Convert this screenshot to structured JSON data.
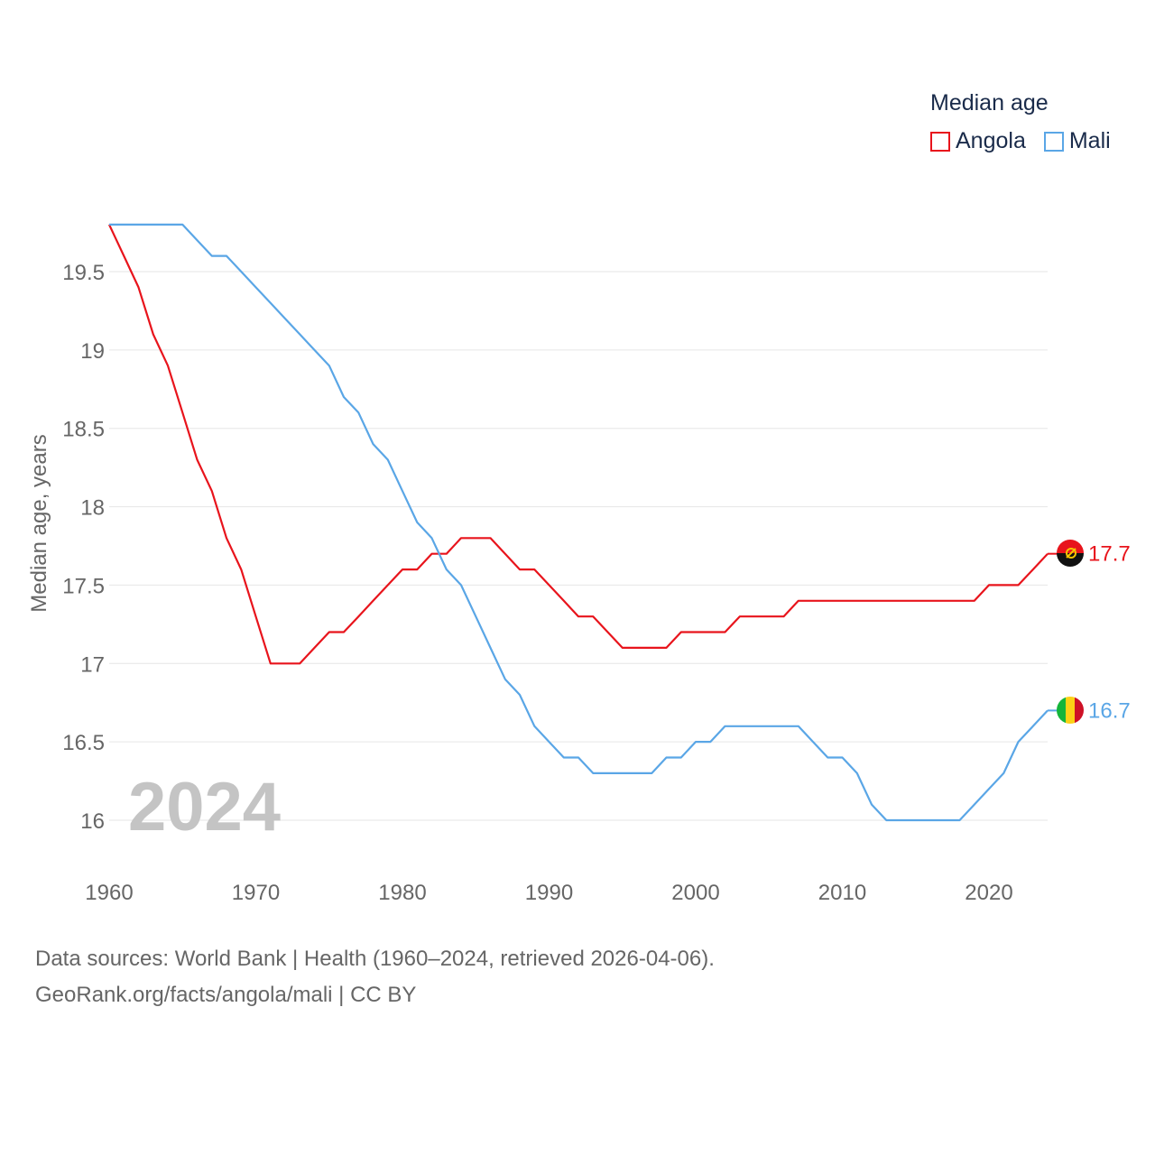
{
  "chart_data": {
    "type": "line",
    "title": "Median age",
    "ylabel": "Median age, years",
    "xlabel": "",
    "year_label": "2024",
    "xlim": [
      1960,
      2024
    ],
    "ylim": [
      15.6,
      19.8
    ],
    "x_ticks": [
      1960,
      1970,
      1980,
      1990,
      2000,
      2010,
      2020
    ],
    "y_ticks": [
      16,
      16.5,
      17,
      17.5,
      18,
      18.5,
      19,
      19.5
    ],
    "y_tick_labels": [
      "16",
      "16.5",
      "17",
      "17.5",
      "18",
      "18.5",
      "19",
      "19.5"
    ],
    "x_tick_labels": [
      "1960",
      "1970",
      "1980",
      "1990",
      "2000",
      "2010",
      "2020"
    ],
    "x": [
      1960,
      1961,
      1962,
      1963,
      1964,
      1965,
      1966,
      1967,
      1968,
      1969,
      1970,
      1971,
      1972,
      1973,
      1974,
      1975,
      1976,
      1977,
      1978,
      1979,
      1980,
      1981,
      1982,
      1983,
      1984,
      1985,
      1986,
      1987,
      1988,
      1989,
      1990,
      1991,
      1992,
      1993,
      1994,
      1995,
      1996,
      1997,
      1998,
      1999,
      2000,
      2001,
      2002,
      2003,
      2004,
      2005,
      2006,
      2007,
      2008,
      2009,
      2010,
      2011,
      2012,
      2013,
      2014,
      2015,
      2016,
      2017,
      2018,
      2019,
      2020,
      2021,
      2022,
      2023,
      2024
    ],
    "series": [
      {
        "name": "Angola",
        "color": "#e8141c",
        "end_label": "17.7",
        "values": [
          19.8,
          19.6,
          19.4,
          19.1,
          18.9,
          18.6,
          18.3,
          18.1,
          17.8,
          17.6,
          17.3,
          17.0,
          17.0,
          17.0,
          17.1,
          17.2,
          17.2,
          17.3,
          17.4,
          17.5,
          17.6,
          17.6,
          17.7,
          17.7,
          17.8,
          17.8,
          17.8,
          17.7,
          17.6,
          17.6,
          17.5,
          17.4,
          17.3,
          17.3,
          17.2,
          17.1,
          17.1,
          17.1,
          17.1,
          17.2,
          17.2,
          17.2,
          17.2,
          17.3,
          17.3,
          17.3,
          17.3,
          17.4,
          17.4,
          17.4,
          17.4,
          17.4,
          17.4,
          17.4,
          17.4,
          17.4,
          17.4,
          17.4,
          17.4,
          17.4,
          17.5,
          17.5,
          17.5,
          17.6,
          17.7
        ]
      },
      {
        "name": "Mali",
        "color": "#5aa6e6",
        "end_label": "16.7",
        "values": [
          19.8,
          19.8,
          19.8,
          19.8,
          19.8,
          19.8,
          19.7,
          19.6,
          19.6,
          19.5,
          19.4,
          19.3,
          19.2,
          19.1,
          19.0,
          18.9,
          18.7,
          18.6,
          18.4,
          18.3,
          18.1,
          17.9,
          17.8,
          17.6,
          17.5,
          17.3,
          17.1,
          16.9,
          16.8,
          16.6,
          16.5,
          16.4,
          16.4,
          16.3,
          16.3,
          16.3,
          16.3,
          16.3,
          16.4,
          16.4,
          16.5,
          16.5,
          16.6,
          16.6,
          16.6,
          16.6,
          16.6,
          16.6,
          16.5,
          16.4,
          16.4,
          16.3,
          16.1,
          16.0,
          16.0,
          16.0,
          16.0,
          16.0,
          16.0,
          16.1,
          16.2,
          16.3,
          16.5,
          16.6,
          16.7
        ]
      }
    ]
  },
  "legend": {
    "title": "Median age",
    "items": [
      "Angola",
      "Mali"
    ]
  },
  "source": {
    "line1": "Data sources: World Bank | Health (1960–2024, retrieved 2026-04-06).",
    "line2": "GeoRank.org/facts/angola/mali | CC BY"
  },
  "colors": {
    "grid": "#e6e6e6",
    "axis_text": "#666666",
    "year_label": "#c4c4c4"
  },
  "icons": {
    "angola_flag": "angola-flag-icon",
    "mali_flag": "mali-flag-icon"
  }
}
